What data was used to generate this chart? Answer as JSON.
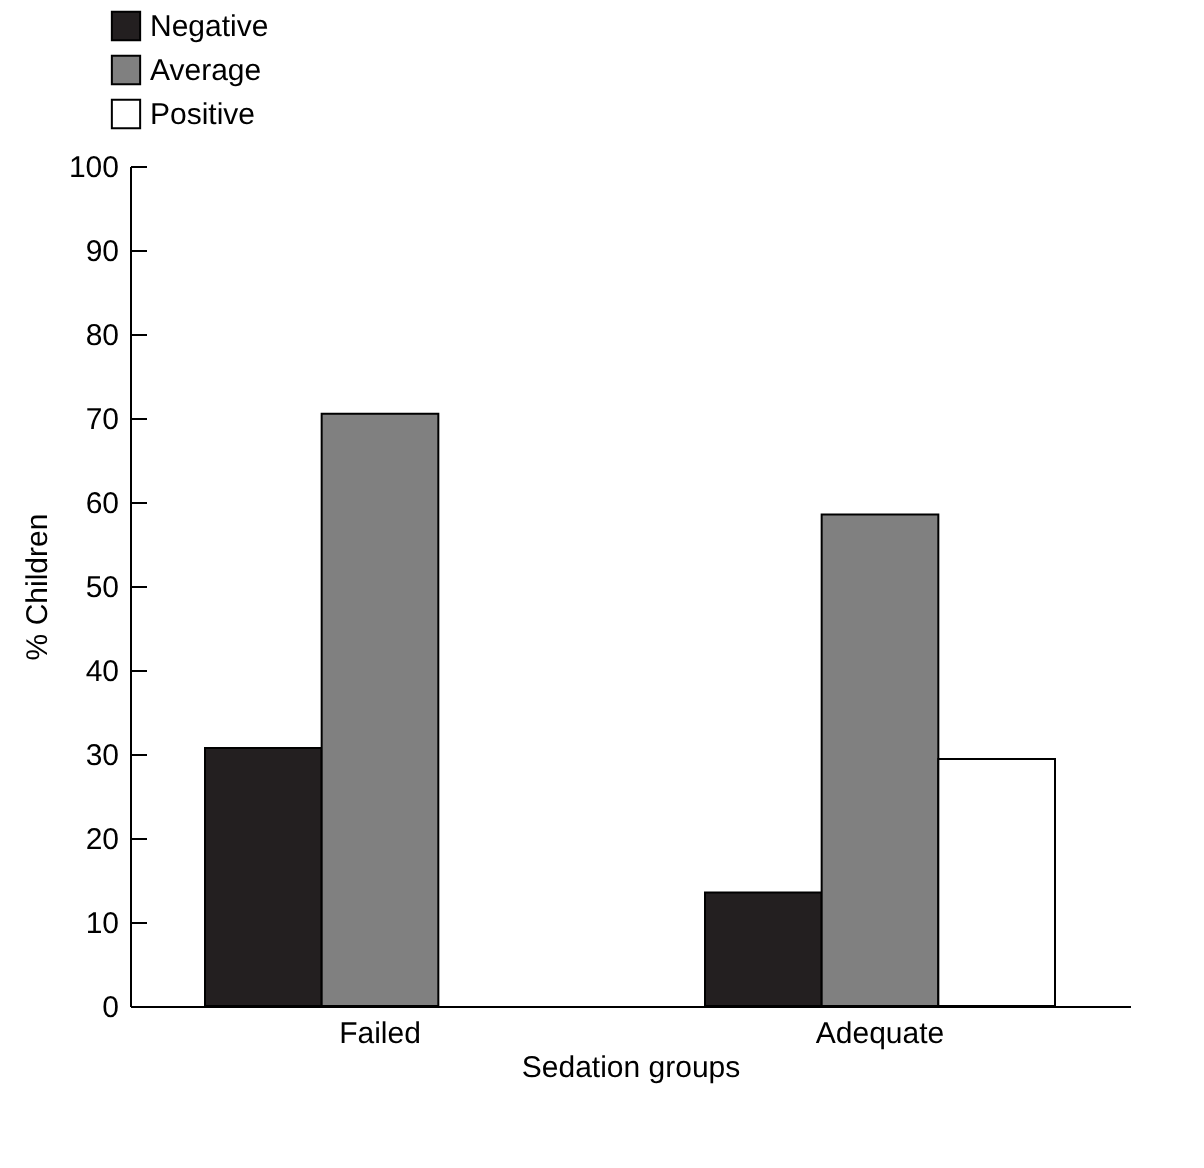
{
  "chart_data": {
    "type": "bar",
    "xlabel": "Sedation groups",
    "ylabel": "% Children",
    "categories": [
      "Failed",
      "Adequate"
    ],
    "series": [
      {
        "name": "Negative",
        "color": "#231f20",
        "values": [
          30.7,
          13.5
        ]
      },
      {
        "name": "Average",
        "color": "#808080",
        "values": [
          70.5,
          58.5
        ]
      },
      {
        "name": "Positive",
        "color": "#ffffff",
        "values": [
          null,
          29.4
        ]
      }
    ],
    "ylim": [
      0,
      100
    ],
    "yticks": [
      0,
      10,
      20,
      30,
      40,
      50,
      60,
      70,
      80,
      90,
      100
    ],
    "grid": false,
    "legend": "top left"
  }
}
